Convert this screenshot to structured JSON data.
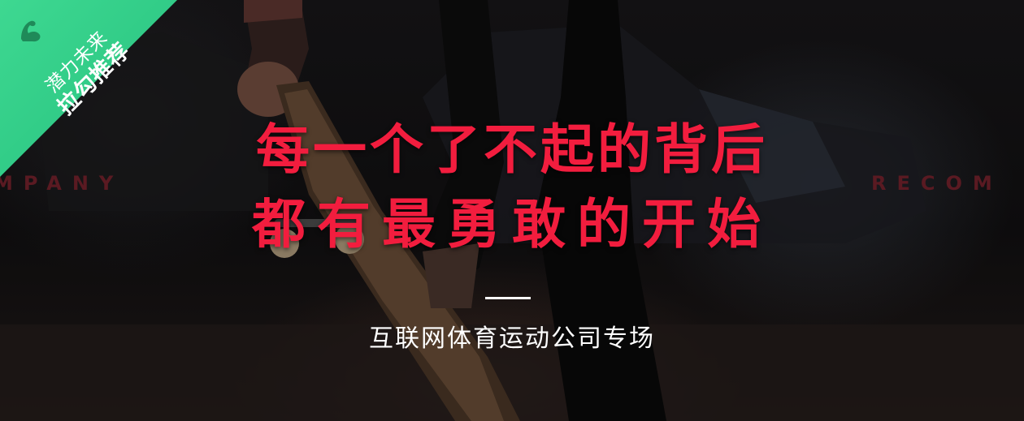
{
  "corner_badge": {
    "line1": "潜力未来",
    "line2": "拉勾推荐",
    "icon": "flexed-arm-icon",
    "color": "#2fcc86"
  },
  "side_words": {
    "left": "MPANY",
    "right": "RECOM"
  },
  "headline": {
    "line1": "每一个了不起的背后",
    "line2": "都有最勇敢的开始",
    "color": "#f21d3e"
  },
  "subtitle": "互联网体育运动公司专场"
}
